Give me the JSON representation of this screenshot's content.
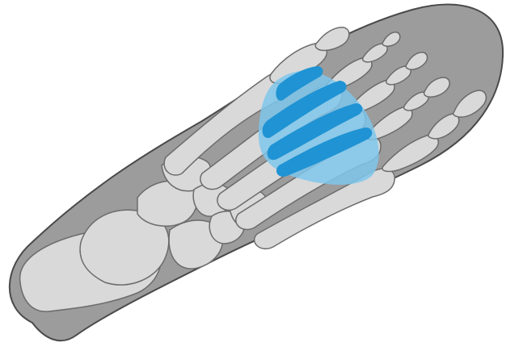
{
  "illustration": {
    "subject": "foot-skeleton-plantar-view",
    "highlight_region": "metatarsal-heads",
    "colors": {
      "background": "#ffffff",
      "insole_fill": "#9c9c9c",
      "insole_stroke": "#4a4a4a",
      "bone_fill": "#d9d9d9",
      "bone_stroke": "#6b6b6b",
      "highlight_light": "#7fc6eb",
      "highlight_dark": "#1f93d3"
    }
  }
}
